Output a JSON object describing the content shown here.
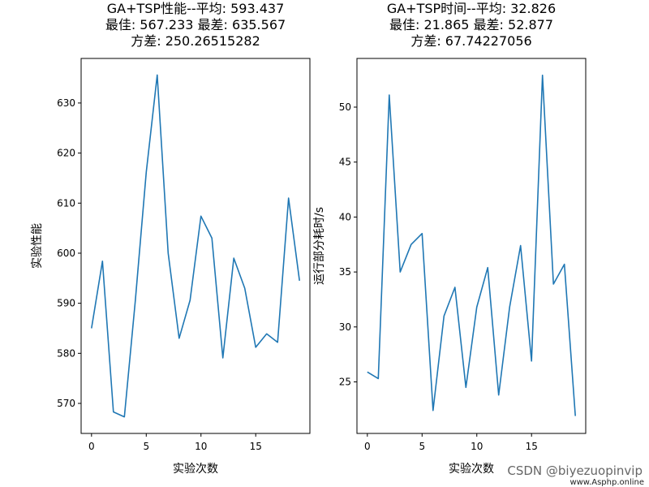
{
  "watermark": {
    "text": "CSDN @biyezuopinvip",
    "site": "www.Asphp.online"
  },
  "colors": {
    "line": "#1f77b4",
    "axes": "#000000",
    "background": "#ffffff"
  },
  "chart_data": [
    {
      "type": "line",
      "title": [
        "GA+TSP性能--平均: 593.437",
        "最佳: 567.233 最差: 635.567",
        "方差: 250.26515282"
      ],
      "xlabel": "实验次数",
      "ylabel": "实验性能",
      "xlim": [
        -0.95,
        19.95
      ],
      "ylim": [
        564.0,
        638.9
      ],
      "xticks": [
        0,
        5,
        10,
        15
      ],
      "yticks": [
        570,
        580,
        590,
        600,
        610,
        620,
        630
      ],
      "grid": false,
      "series": [
        {
          "x": [
            0,
            1,
            2,
            3,
            4,
            5,
            6,
            7,
            8,
            9,
            10,
            11,
            12,
            13,
            14,
            15,
            16,
            17,
            18,
            19
          ],
          "y": [
            585.0,
            598.4,
            568.3,
            567.3,
            590.5,
            616.2,
            635.6,
            600.0,
            583.0,
            590.6,
            607.4,
            603.0,
            579.1,
            599.0,
            593.0,
            581.2,
            583.9,
            582.2,
            611.0,
            594.5
          ]
        }
      ]
    },
    {
      "type": "line",
      "title": [
        "GA+TSP时间--平均: 32.826",
        "最佳: 21.865 最差: 52.877",
        "方差: 67.74227056"
      ],
      "xlabel": "实验次数",
      "ylabel": "运行部分耗时/s",
      "xlim": [
        -0.95,
        19.95
      ],
      "ylim": [
        20.31,
        54.43
      ],
      "xticks": [
        0,
        5,
        10,
        15
      ],
      "yticks": [
        25,
        30,
        35,
        40,
        45,
        50
      ],
      "grid": false,
      "series": [
        {
          "x": [
            0,
            1,
            2,
            3,
            4,
            5,
            6,
            7,
            8,
            9,
            10,
            11,
            12,
            13,
            14,
            15,
            16,
            17,
            18,
            19
          ],
          "y": [
            25.9,
            25.3,
            51.1,
            35.0,
            37.5,
            38.5,
            22.4,
            31.0,
            33.6,
            24.5,
            31.8,
            35.4,
            23.8,
            31.8,
            37.4,
            26.9,
            52.9,
            33.9,
            35.7,
            21.9
          ]
        }
      ]
    }
  ]
}
